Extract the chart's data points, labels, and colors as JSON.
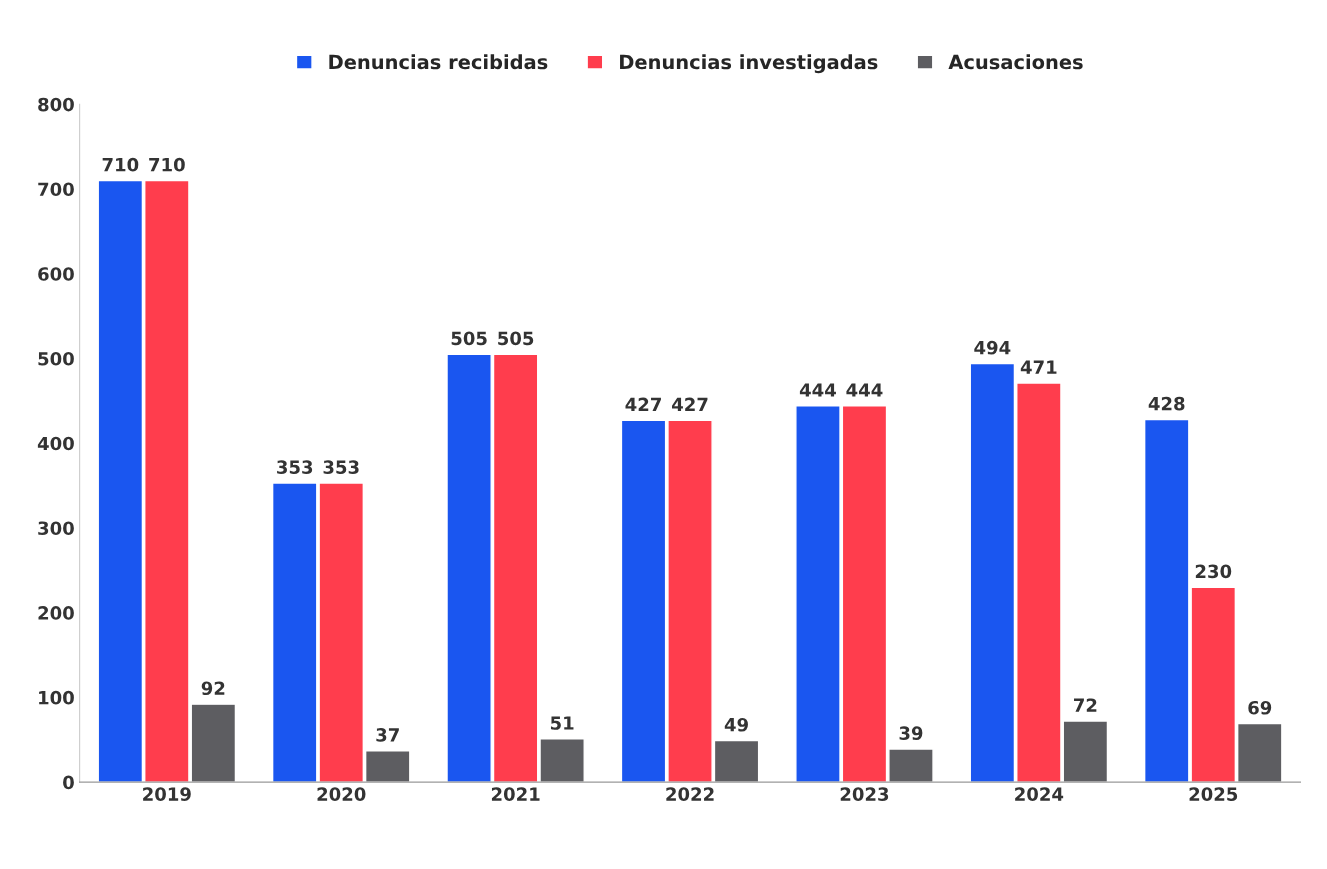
{
  "chart_data": {
    "type": "bar",
    "categories": [
      "2019",
      "2020",
      "2021",
      "2022",
      "2023",
      "2024",
      "2025"
    ],
    "series": [
      {
        "name": "Denuncias recibidas",
        "color": "#1a56f0",
        "values": [
          710,
          353,
          505,
          427,
          444,
          494,
          428
        ]
      },
      {
        "name": "Denuncias investigadas",
        "color": "#ff3d4d",
        "values": [
          710,
          353,
          505,
          427,
          444,
          471,
          230
        ]
      },
      {
        "name": "Acusaciones",
        "color": "#5d5d61",
        "values": [
          92,
          37,
          51,
          49,
          39,
          72,
          69
        ]
      }
    ],
    "ylim": [
      0,
      800
    ],
    "yticks": [
      0,
      100,
      200,
      300,
      400,
      500,
      600,
      700,
      800
    ],
    "data_labels": true,
    "legend": "top",
    "grid": false
  }
}
